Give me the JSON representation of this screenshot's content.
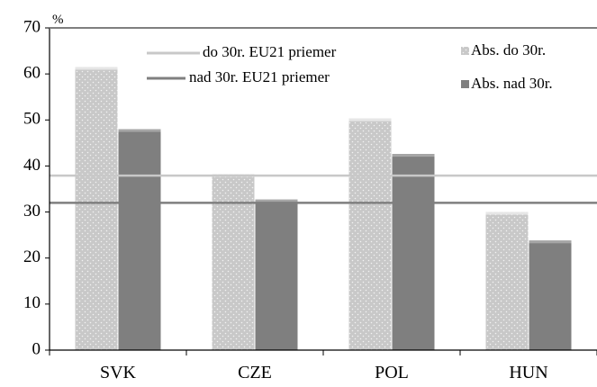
{
  "chart_data": {
    "type": "bar",
    "y_unit": "%",
    "categories": [
      "SVK",
      "CZE",
      "POL",
      "HUN"
    ],
    "ylim": [
      0,
      70
    ],
    "yticks": [
      0,
      10,
      20,
      30,
      40,
      50,
      60,
      70
    ],
    "grid": false,
    "series": [
      {
        "name": "Abs. do 30r.",
        "values": [
          61.5,
          38.2,
          50.3,
          30.0
        ],
        "color": "#c8c8c8",
        "pattern": "dotted"
      },
      {
        "name": "Abs. nad 30r.",
        "values": [
          48.0,
          32.7,
          42.6,
          23.8
        ],
        "color": "#7f7f7f"
      }
    ],
    "reference_lines": [
      {
        "name": "do 30r. EU21 priemer",
        "value": 37.9,
        "color": "#c8c8c8"
      },
      {
        "name": "nad 30r. EU21 priemer",
        "value": 32.0,
        "color": "#7f7f7f"
      }
    ],
    "legend_placement": "top"
  }
}
